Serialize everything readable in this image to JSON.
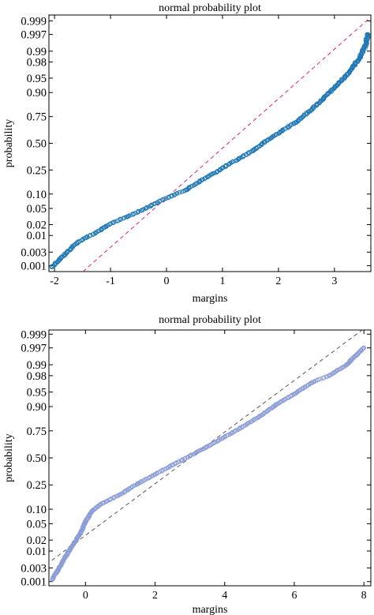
{
  "chart_data": [
    {
      "type": "scatter",
      "title": "normal probability plot",
      "xlabel": "margins",
      "ylabel": "probability",
      "xlim": [
        -2.1,
        3.65
      ],
      "ylim_probability": [
        0.0006,
        0.9994
      ],
      "y_ticks": [
        "0.001",
        "0.003",
        "0.01",
        "0.02",
        "0.05",
        "0.10",
        "0.25",
        "0.50",
        "0.75",
        "0.90",
        "0.95",
        "0.98",
        "0.99",
        "0.997",
        "0.999"
      ],
      "y_tick_values": [
        0.001,
        0.003,
        0.01,
        0.02,
        0.05,
        0.1,
        0.25,
        0.5,
        0.75,
        0.9,
        0.95,
        0.98,
        0.99,
        0.997,
        0.999
      ],
      "x_ticks": [
        "-2",
        "-1",
        "0",
        "1",
        "2",
        "3"
      ],
      "x_tick_values": [
        -2,
        -1,
        0,
        1,
        2,
        3
      ],
      "grid": false,
      "marker_color": "#1f77b4",
      "line_color": "#e0207a",
      "line_style": "dashed",
      "reference_line": {
        "mean": 1.1,
        "sd": 0.8
      },
      "series_points": [
        [
          -2.05,
          0.0009
        ],
        [
          -1.6,
          0.006
        ],
        [
          -1.45,
          0.0085
        ],
        [
          -1.3,
          0.011
        ],
        [
          -1.1,
          0.017
        ],
        [
          -0.95,
          0.023
        ],
        [
          -0.7,
          0.032
        ],
        [
          -0.45,
          0.045
        ],
        [
          -0.2,
          0.065
        ],
        [
          0.1,
          0.093
        ],
        [
          0.35,
          0.12
        ],
        [
          0.6,
          0.17
        ],
        [
          0.85,
          0.225
        ],
        [
          1.05,
          0.28
        ],
        [
          1.3,
          0.35
        ],
        [
          1.55,
          0.43
        ],
        [
          1.8,
          0.53
        ],
        [
          2.05,
          0.62
        ],
        [
          2.3,
          0.7
        ],
        [
          2.55,
          0.79
        ],
        [
          2.8,
          0.87
        ],
        [
          3.0,
          0.92
        ],
        [
          3.2,
          0.955
        ],
        [
          3.35,
          0.975
        ],
        [
          3.45,
          0.985
        ],
        [
          3.55,
          0.993
        ],
        [
          3.6,
          0.997
        ]
      ]
    },
    {
      "type": "scatter",
      "title": "normal probability plot",
      "xlabel": "margins",
      "ylabel": "probability",
      "xlim": [
        -1.05,
        8.2
      ],
      "ylim_probability": [
        0.0007,
        0.9993
      ],
      "y_ticks": [
        "0.001",
        "0.003",
        "0.01",
        "0.02",
        "0.05",
        "0.10",
        "0.25",
        "0.50",
        "0.75",
        "0.90",
        "0.95",
        "0.98",
        "0.99",
        "0.997",
        "0.999"
      ],
      "y_tick_values": [
        0.001,
        0.003,
        0.01,
        0.02,
        0.05,
        0.1,
        0.25,
        0.5,
        0.75,
        0.9,
        0.95,
        0.98,
        0.99,
        0.997,
        0.999
      ],
      "x_ticks": [
        "0",
        "2",
        "4",
        "6",
        "8"
      ],
      "x_tick_values": [
        0,
        2,
        4,
        6,
        8
      ],
      "grid": false,
      "marker_color": "#8a9cd6",
      "line_color": "#555555",
      "line_style": "dashed",
      "reference_line": {
        "mean": 3.0,
        "sd": 1.55
      },
      "series_points": [
        [
          -0.95,
          0.0012
        ],
        [
          -0.75,
          0.003
        ],
        [
          -0.6,
          0.006
        ],
        [
          -0.45,
          0.011
        ],
        [
          -0.3,
          0.018
        ],
        [
          -0.15,
          0.03
        ],
        [
          0.0,
          0.055
        ],
        [
          0.2,
          0.095
        ],
        [
          0.5,
          0.13
        ],
        [
          1.0,
          0.18
        ],
        [
          1.5,
          0.26
        ],
        [
          2.0,
          0.34
        ],
        [
          2.5,
          0.43
        ],
        [
          3.0,
          0.52
        ],
        [
          3.5,
          0.61
        ],
        [
          4.0,
          0.7
        ],
        [
          4.5,
          0.78
        ],
        [
          5.0,
          0.85
        ],
        [
          5.5,
          0.91
        ],
        [
          6.0,
          0.945
        ],
        [
          6.5,
          0.97
        ],
        [
          7.0,
          0.98
        ],
        [
          7.5,
          0.99
        ],
        [
          8.0,
          0.997
        ]
      ]
    }
  ]
}
